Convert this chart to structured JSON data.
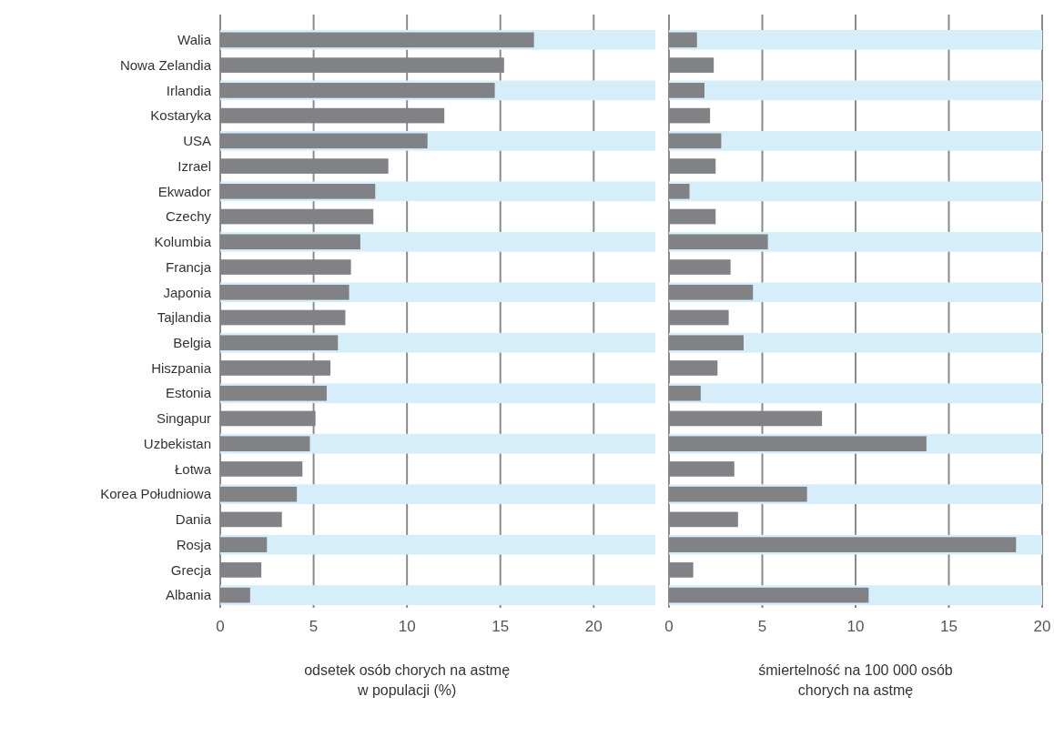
{
  "chart_data": [
    {
      "type": "bar",
      "orientation": "horizontal",
      "categories": [
        "Walia",
        "Nowa Zelandia",
        "Irlandia",
        "Kostaryka",
        "USA",
        "Izrael",
        "Ekwador",
        "Czechy",
        "Kolumbia",
        "Francja",
        "Japonia",
        "Tajlandia",
        "Belgia",
        "Hiszpania",
        "Estonia",
        "Singapur",
        "Uzbekistan",
        "Łotwa",
        "Korea Południowa",
        "Dania",
        "Rosja",
        "Grecja",
        "Albania"
      ],
      "values": [
        16.8,
        15.2,
        14.7,
        12.0,
        11.1,
        9.0,
        8.3,
        8.2,
        7.5,
        7.0,
        6.9,
        6.7,
        6.3,
        5.9,
        5.7,
        5.1,
        4.8,
        4.4,
        4.1,
        3.3,
        2.5,
        2.2,
        1.6
      ],
      "color": "#808285",
      "xlim": [
        0,
        23.3
      ],
      "xticks": [
        0,
        5,
        10,
        15,
        20
      ],
      "grid": "x",
      "xlabel": "odsetek osób chorych na astmę\nw populacji (%)"
    },
    {
      "type": "bar",
      "orientation": "horizontal",
      "categories": [
        null,
        null,
        null,
        null,
        null,
        null,
        null,
        null,
        null,
        null,
        null,
        null,
        null,
        null,
        null,
        null,
        null,
        null,
        null,
        null,
        null,
        null,
        null
      ],
      "values": [
        1.5,
        2.4,
        1.9,
        2.2,
        2.8,
        2.5,
        1.1,
        2.5,
        5.3,
        3.3,
        4.5,
        3.2,
        4.0,
        2.6,
        1.7,
        8.2,
        13.8,
        3.5,
        7.4,
        3.7,
        18.6,
        1.3,
        10.7
      ],
      "color": "#808285",
      "xlim": [
        0,
        20
      ],
      "xticks": [
        0,
        5,
        10,
        15,
        20
      ],
      "grid": "x",
      "tick_labels": "x",
      "xlabel": "śmiertelność na 100 000 osób\nchorych na astmę"
    }
  ]
}
